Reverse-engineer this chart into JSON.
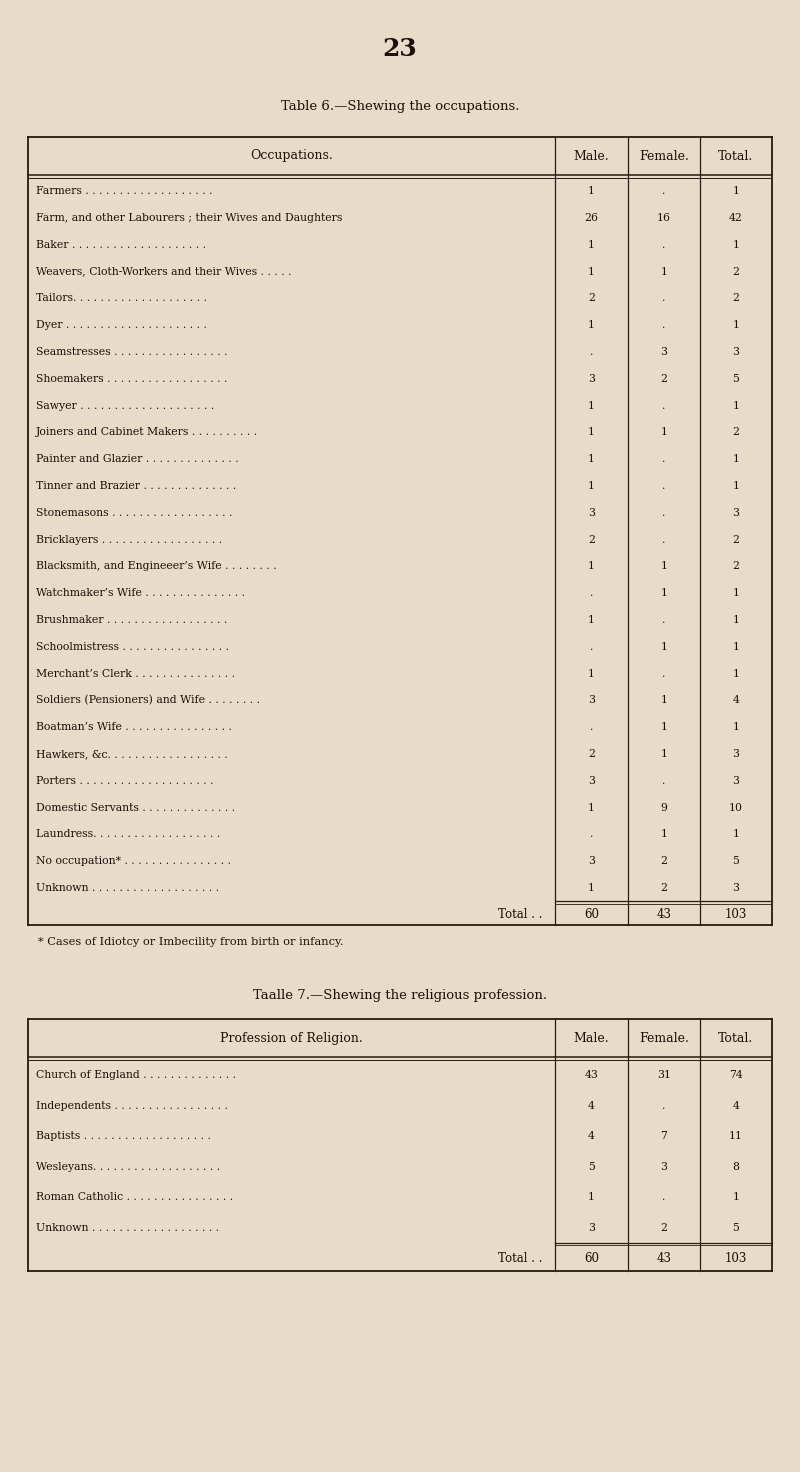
{
  "page_number": "23",
  "bg_color": "#e8dcc8",
  "table1_title": "Table 6.—Shewing the occupations.",
  "table1_header": [
    "Occupations.",
    "Male.",
    "Female.",
    "Total."
  ],
  "table1_rows": [
    [
      "Farmers . . . . . . . . . . . . . . . . . . .",
      "1",
      ".",
      "1"
    ],
    [
      "Farm, and other Labourers ; their Wives and Daughters",
      "26",
      "16",
      "42"
    ],
    [
      "Baker . . . . . . . . . . . . . . . . . . . .",
      "1",
      ".",
      "1"
    ],
    [
      "Weavers, Cloth-Workers and their Wives . . . . .",
      "1",
      "1",
      "2"
    ],
    [
      "Tailors. . . . . . . . . . . . . . . . . . . .",
      "2",
      ".",
      "2"
    ],
    [
      "Dyer . . . . . . . . . . . . . . . . . . . . .",
      "1",
      ".",
      "1"
    ],
    [
      "Seamstresses . . . . . . . . . . . . . . . . .",
      ".",
      "3",
      "3"
    ],
    [
      "Shoemakers . . . . . . . . . . . . . . . . . .",
      "3",
      "2",
      "5"
    ],
    [
      "Sawyer . . . . . . . . . . . . . . . . . . . .",
      "1",
      ".",
      "1"
    ],
    [
      "Joiners and Cabinet Makers . . . . . . . . . .",
      "1",
      "1",
      "2"
    ],
    [
      "Painter and Glazier . . . . . . . . . . . . . .",
      "1",
      ".",
      "1"
    ],
    [
      "Tinner and Brazier . . . . . . . . . . . . . .",
      "1",
      ".",
      "1"
    ],
    [
      "Stonemasons . . . . . . . . . . . . . . . . . .",
      "3",
      ".",
      "3"
    ],
    [
      "Bricklayers . . . . . . . . . . . . . . . . . .",
      "2",
      ".",
      "2"
    ],
    [
      "Blacksmith, and Engineeer’s Wife . . . . . . . .",
      "1",
      "1",
      "2"
    ],
    [
      "Watchmaker’s Wife . . . . . . . . . . . . . . .",
      ".",
      "1",
      "1"
    ],
    [
      "Brushmaker . . . . . . . . . . . . . . . . . .",
      "1",
      ".",
      "1"
    ],
    [
      "Schoolmistress . . . . . . . . . . . . . . . .",
      ".",
      "1",
      "1"
    ],
    [
      "Merchant’s Clerk . . . . . . . . . . . . . . .",
      "1",
      ".",
      "1"
    ],
    [
      "Soldiers (Pensioners) and Wife . . . . . . . .",
      "3",
      "1",
      "4"
    ],
    [
      "Boatman’s Wife . . . . . . . . . . . . . . . .",
      ".",
      "1",
      "1"
    ],
    [
      "Hawkers, &c. . . . . . . . . . . . . . . . . .",
      "2",
      "1",
      "3"
    ],
    [
      "Porters . . . . . . . . . . . . . . . . . . . .",
      "3",
      ".",
      "3"
    ],
    [
      "Domestic Servants . . . . . . . . . . . . . .",
      "1",
      "9",
      "10"
    ],
    [
      "Laundress. . . . . . . . . . . . . . . . . . .",
      ".",
      "1",
      "1"
    ],
    [
      "No occupation* . . . . . . . . . . . . . . . .",
      "3",
      "2",
      "5"
    ],
    [
      "Unknown . . . . . . . . . . . . . . . . . . .",
      "1",
      "2",
      "3"
    ]
  ],
  "table1_total": [
    "Total . .",
    "60",
    "43",
    "103"
  ],
  "table1_footnote": "* Cases of Idiotcy or Imbecility from birth or infancy.",
  "table2_title": "Taalle 7.—Shewing the religious profession.",
  "table2_header": [
    "Profession of Religion.",
    "Male.",
    "Female.",
    "Total."
  ],
  "table2_rows": [
    [
      "Church of England . . . . . . . . . . . . . .",
      "43",
      "31",
      "74"
    ],
    [
      "Independents . . . . . . . . . . . . . . . . .",
      "4",
      ".",
      "4"
    ],
    [
      "Baptists . . . . . . . . . . . . . . . . . . .",
      "4",
      "7",
      "11"
    ],
    [
      "Wesleyans. . . . . . . . . . . . . . . . . . .",
      "5",
      "3",
      "8"
    ],
    [
      "Roman Catholic . . . . . . . . . . . . . . . .",
      "1",
      ".",
      "1"
    ],
    [
      "Unknown . . . . . . . . . . . . . . . . . . .",
      "3",
      "2",
      "5"
    ]
  ],
  "table2_total": [
    "Total . .",
    "60",
    "43",
    "103"
  ],
  "text_color": "#1a1008",
  "line_color": "#2a1a08"
}
